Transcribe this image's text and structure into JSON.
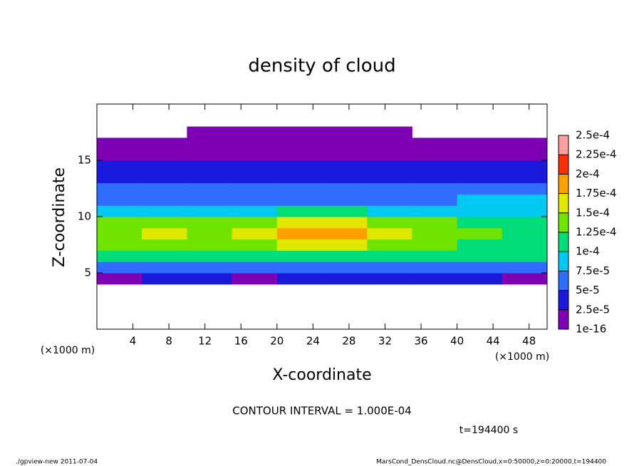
{
  "chart_data": {
    "type": "heatmap",
    "title": "density of cloud",
    "x_label": "X-coordinate",
    "y_label": "Z-coordinate",
    "x_unit": "(×1000 m)",
    "y_unit": "(×1000 m)",
    "contour_note": "CONTOUR INTERVAL = 1.000E-04",
    "time_note": "t=194400 s",
    "footer_left": "./gpview-new  2011-07-04",
    "footer_right": "MarsCond_DensCloud.nc@DensCloud,x=0:50000,z=0:20000,t=194400",
    "xlim": [
      0,
      50
    ],
    "ylim": [
      0,
      20
    ],
    "xticks": [
      4,
      8,
      12,
      16,
      20,
      24,
      28,
      32,
      36,
      40,
      44,
      48
    ],
    "yticks": [
      5,
      10,
      15
    ],
    "x_edges": [
      0,
      5,
      10,
      15,
      20,
      25,
      30,
      35,
      40,
      45,
      50
    ],
    "y_edges": [
      0,
      1,
      2,
      3,
      4,
      5,
      6,
      7,
      8,
      9,
      10,
      11,
      12,
      13,
      14,
      15,
      16,
      17,
      18,
      19,
      20
    ],
    "levels": [
      1e-16,
      {
        "value": 2.5e-05,
        "label": "2.5e-5"
      },
      {
        "value": 5e-05,
        "label": "5e-5"
      },
      {
        "value": 7.5e-05,
        "label": "7.5e-5"
      },
      {
        "value": 0.0001,
        "label": "1e-4"
      },
      {
        "value": 0.000125,
        "label": "1.25e-4"
      },
      {
        "value": 0.00015,
        "label": "1.5e-4"
      },
      {
        "value": 0.000175,
        "label": "1.75e-4"
      },
      {
        "value": 0.0002,
        "label": "2e-4"
      },
      {
        "value": 0.000225,
        "label": "2.25e-4"
      },
      {
        "value": 0.00025,
        "label": "2.5e-4"
      }
    ],
    "colors": [
      "#7d00b4",
      "#1a1adc",
      "#2f6cff",
      "#00c8f0",
      "#00dc78",
      "#70e400",
      "#e0e800",
      "#ffa000",
      "#ff3000",
      "#ffa0a0"
    ],
    "values": [
      [
        null,
        null,
        null,
        null,
        null,
        null,
        null,
        null,
        null,
        null
      ],
      [
        null,
        null,
        null,
        null,
        null,
        null,
        null,
        null,
        null,
        null
      ],
      [
        null,
        null,
        null,
        null,
        null,
        null,
        null,
        null,
        null,
        null
      ],
      [
        null,
        null,
        null,
        null,
        null,
        null,
        null,
        null,
        null,
        null
      ],
      [
        2e-05,
        3e-05,
        3e-05,
        2e-05,
        3e-05,
        3e-05,
        3e-05,
        3e-05,
        3e-05,
        2e-05
      ],
      [
        6.5e-05,
        6e-05,
        6.5e-05,
        7e-05,
        6.5e-05,
        7e-05,
        6e-05,
        6.5e-05,
        6e-05,
        6.5e-05
      ],
      [
        0.000105,
        0.00011,
        0.000105,
        0.00011,
        0.00012,
        0.00012,
        0.00011,
        0.000105,
        0.00011,
        0.000105
      ],
      [
        0.00013,
        0.00014,
        0.00013,
        0.00014,
        0.00015,
        0.00016,
        0.00013,
        0.00013,
        0.00012,
        0.00011
      ],
      [
        0.00014,
        0.00015,
        0.00014,
        0.00015,
        0.00018,
        0.00019,
        0.00015,
        0.00014,
        0.00013,
        0.00012
      ],
      [
        0.00013,
        0.00014,
        0.00013,
        0.00014,
        0.00016,
        0.00017,
        0.00014,
        0.00013,
        0.00011,
        0.0001
      ],
      [
        8e-05,
        9e-05,
        9e-05,
        9e-05,
        0.00011,
        0.00011,
        9e-05,
        9e-05,
        8e-05,
        8e-05
      ],
      [
        7e-05,
        7e-05,
        6e-05,
        7e-05,
        7e-05,
        7e-05,
        7e-05,
        7e-05,
        8e-05,
        8e-05
      ],
      [
        6e-05,
        5.5e-05,
        5.5e-05,
        6e-05,
        6e-05,
        5.5e-05,
        6e-05,
        6e-05,
        6e-05,
        6e-05
      ],
      [
        4e-05,
        4.5e-05,
        4e-05,
        4e-05,
        4.5e-05,
        4.5e-05,
        4e-05,
        4e-05,
        4.5e-05,
        4e-05
      ],
      [
        3e-05,
        3e-05,
        2.8e-05,
        3e-05,
        3e-05,
        3e-05,
        3e-05,
        3e-05,
        3e-05,
        3e-05
      ],
      [
        1.5e-05,
        1.8e-05,
        1.5e-05,
        1.5e-05,
        1.8e-05,
        1.5e-05,
        1.8e-05,
        1.5e-05,
        1.8e-05,
        1.5e-05
      ],
      [
        8e-06,
        1e-05,
        1e-05,
        8e-06,
        1e-05,
        1e-05,
        1e-05,
        8e-06,
        1e-05,
        8e-06
      ],
      [
        null,
        null,
        5e-06,
        5e-06,
        5e-06,
        5e-06,
        5e-06,
        null,
        null,
        null
      ],
      [
        null,
        null,
        null,
        null,
        null,
        null,
        null,
        null,
        null,
        null
      ],
      [
        null,
        null,
        null,
        null,
        null,
        null,
        null,
        null,
        null,
        null
      ]
    ]
  }
}
